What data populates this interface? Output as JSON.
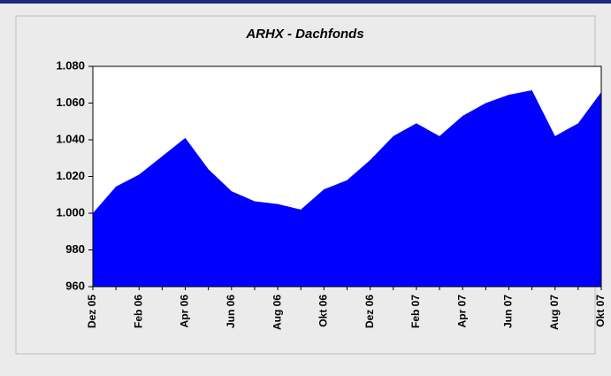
{
  "chart_data": {
    "type": "area",
    "title": "ARHX - Dachfonds",
    "categories": [
      "Dez 05",
      null,
      "Feb 06",
      null,
      "Apr 06",
      null,
      "Jun 06",
      null,
      "Aug 06",
      null,
      "Okt 06",
      null,
      "Dez 06",
      null,
      "Feb 07",
      null,
      "Apr 07",
      null,
      "Jun 07",
      null,
      "Aug 07",
      null,
      "Okt 07"
    ],
    "values": [
      1000,
      1014.5,
      1021,
      1031,
      1041,
      1024,
      1012,
      1006.5,
      1005,
      1002,
      1013,
      1018,
      1029,
      1042,
      1049,
      1042,
      1053,
      1060,
      1064.5,
      1067,
      1042,
      1049,
      1066
    ],
    "color": "#0000ff",
    "ylim": [
      960,
      1080
    ],
    "yticks": [
      960,
      980,
      {
        "value": 1000,
        "label": "1.000"
      },
      {
        "value": 1020,
        "label": "1.020"
      },
      {
        "value": 1040,
        "label": "1.040"
      },
      {
        "value": 1060,
        "label": "1.060"
      },
      {
        "value": 1080,
        "label": "1.080"
      }
    ],
    "grid": false
  }
}
